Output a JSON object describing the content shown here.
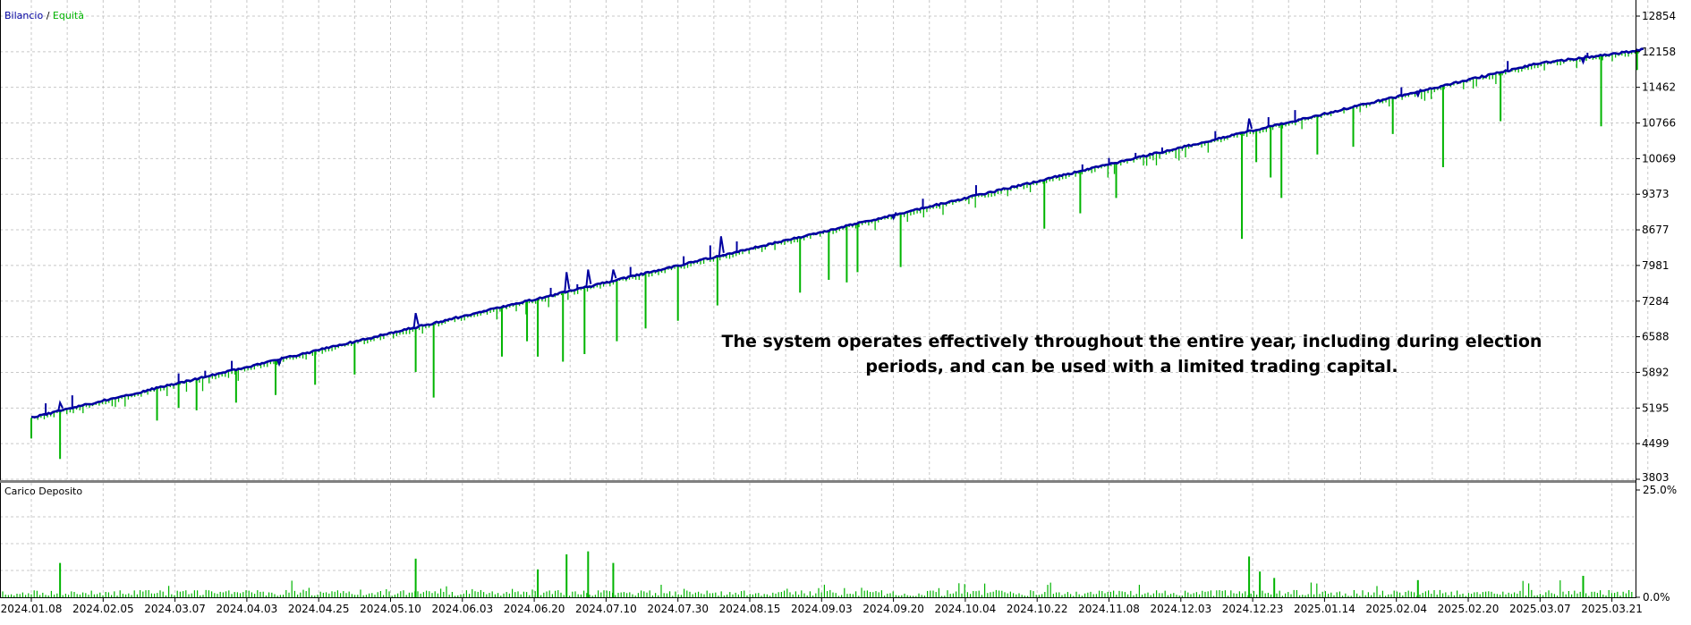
{
  "colors": {
    "balance": "#0000a0",
    "equity": "#00b400",
    "load": "#00b400",
    "grid": "#c8c8c8",
    "axis": "#000000",
    "divider": "#808080"
  },
  "annotation": [
    "The system operates effectively throughout the entire year, including during election",
    "periods, and can be used with a limited trading capital."
  ],
  "chart_data": [
    {
      "type": "line",
      "legend": {
        "balance_label": "Bilancio",
        "separator": " / ",
        "equity_label": "Equità",
        "position": "top-left"
      },
      "grid": true,
      "y_ticks": [
        12854,
        12158,
        11462,
        10766,
        10069,
        9373,
        8677,
        7981,
        7284,
        6588,
        5892,
        5195,
        4499,
        3803
      ],
      "ylim": [
        3803,
        12854
      ],
      "x_tick_labels": [
        "2024.01.08",
        "2024.02.05",
        "2024.03.07",
        "2024.04.03",
        "2024.04.25",
        "2024.05.10",
        "2024.06.03",
        "2024.06.20",
        "2024.07.10",
        "2024.07.30",
        "2024.08.15",
        "2024.09.03",
        "2024.09.20",
        "2024.10.04",
        "2024.10.22",
        "2024.11.08",
        "2024.12.03",
        "2024.12.23",
        "2025.01.14",
        "2025.02.04",
        "2025.02.20",
        "2025.03.07",
        "2025.03.21"
      ],
      "series": [
        {
          "name": "Bilancio",
          "x": [
            0,
            1,
            2,
            3,
            4,
            5,
            6,
            7,
            8,
            9,
            10,
            11,
            12,
            13,
            14,
            15,
            16,
            17,
            18,
            19,
            20,
            21,
            22,
            22.45
          ],
          "values": [
            5000,
            5330,
            5660,
            5990,
            6320,
            6650,
            6980,
            7310,
            7640,
            7970,
            8300,
            8630,
            8960,
            9290,
            9620,
            9950,
            10280,
            10610,
            10940,
            11270,
            11600,
            11930,
            12100,
            12200
          ]
        },
        {
          "name": "Equità",
          "x": [
            0.0,
            0.4,
            1.75,
            2.05,
            2.3,
            2.85,
            3.4,
            3.95,
            4.5,
            5.35,
            5.6,
            6.55,
            6.9,
            7.05,
            7.4,
            7.7,
            8.15,
            8.55,
            9.0,
            9.55,
            10.7,
            11.1,
            11.35,
            11.5,
            12.1,
            14.1,
            14.6,
            15.1,
            16.85,
            17.05,
            17.25,
            17.4,
            17.9,
            18.4,
            18.95,
            19.65,
            20.45,
            21.85,
            22.35
          ],
          "values": [
            4600,
            4200,
            4950,
            5200,
            5150,
            5300,
            5450,
            5650,
            5850,
            5900,
            5400,
            6200,
            6500,
            6200,
            6100,
            6250,
            6500,
            6750,
            6900,
            7200,
            7450,
            7700,
            7650,
            7850,
            7950,
            8700,
            9000,
            9300,
            8500,
            10000,
            9700,
            9300,
            10150,
            10300,
            10550,
            9900,
            10800,
            10700,
            11800
          ]
        }
      ],
      "balance_spikes": {
        "x": [
          0.4,
          3.45,
          5.35,
          7.45,
          7.75,
          8.1,
          9.6,
          12.0,
          16.95,
          19.3,
          21.6
        ],
        "values": [
          5300,
          6050,
          7050,
          7850,
          7900,
          7900,
          8550,
          8900,
          10850,
          11300,
          11950
        ]
      }
    },
    {
      "type": "bar",
      "title": "Carico Deposito",
      "y_ticks": [
        "25.0%",
        "0.0%"
      ],
      "ylim": [
        0,
        25
      ],
      "grid": true,
      "peaks": {
        "x": [
          0.4,
          5.35,
          7.05,
          7.45,
          7.75,
          8.1,
          16.95,
          17.1,
          17.3,
          19.3,
          21.6
        ],
        "values": [
          8.0,
          9.0,
          6.5,
          10.0,
          10.7,
          8.0,
          9.5,
          6.0,
          4.5,
          4.0,
          5.0
        ]
      }
    }
  ]
}
